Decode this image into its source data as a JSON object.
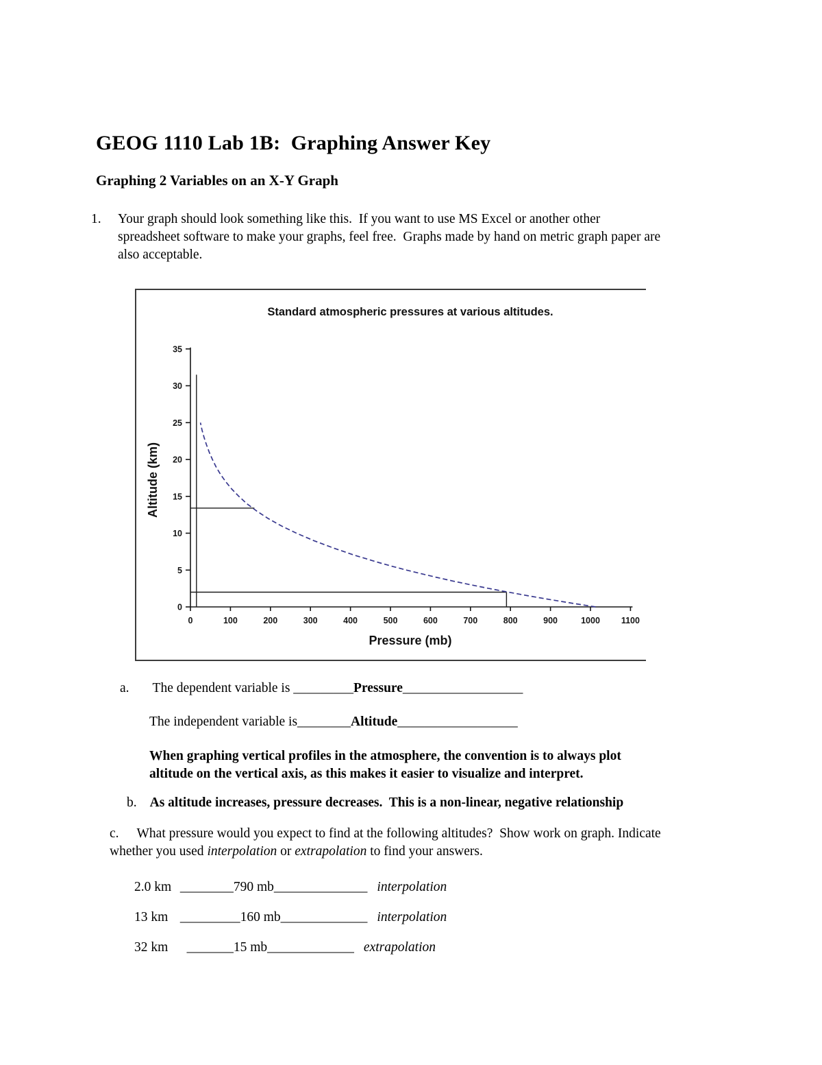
{
  "page": {
    "title": "GEOG 1110 Lab 1B:  Graphing Answer Key",
    "subtitle": "Graphing 2 Variables on an X-Y Graph",
    "item1": {
      "number": "1.",
      "lines": [
        "Your graph should look something like this.  If you want to use MS Excel or another other",
        "spreadsheet software to make your graphs, feel free.  Graphs made by hand on metric graph paper are",
        "also acceptable."
      ]
    }
  },
  "qa": {
    "a": {
      "label": "a.",
      "dependent_prefix": "The dependent variable is ",
      "dependent_blank1": "_________",
      "dependent_answer": "Pressure",
      "dependent_blank2": "__________________",
      "independent_prefix": "The independent variable is",
      "independent_blank1": "________",
      "independent_answer": "Altitude",
      "independent_blank2": "__________________",
      "note_lines": [
        "When graphing vertical profiles in the atmosphere, the convention is to always plot",
        "altitude on the vertical axis, as this makes it easier to visualize and interpret."
      ]
    },
    "b": {
      "label": "b.",
      "text": "As altitude increases, pressure decreases.  This is a non-linear, negative relationship"
    },
    "c": {
      "label": "c.",
      "line1": "What pressure would you expect to find at the following altitudes?  Show work on graph. Indicate",
      "line2_pre": "whether you used ",
      "line2_italic1": "interpolation",
      "line2_mid": " or ",
      "line2_italic2": "extrapolation",
      "line2_post": " to find your answers."
    },
    "answers": [
      {
        "altitude": "2.0 km",
        "blank1": " ________",
        "value": "790 mb",
        "blank2": "______________",
        "method": "interpolation"
      },
      {
        "altitude": "13 km",
        "blank1": " _________",
        "value": "160 mb",
        "blank2": "_____________",
        "method": "interpolation"
      },
      {
        "altitude": "32 km",
        "blank1": "   _______",
        "value": "15 mb",
        "blank2": "_____________",
        "method": "extrapolation"
      }
    ]
  },
  "chart_data": {
    "type": "line",
    "title": "Standard atmospheric pressures at various altitudes.",
    "xlabel": "Pressure (mb)",
    "ylabel": "Altitude (km)",
    "xlim": [
      0,
      1100
    ],
    "ylim": [
      0,
      35
    ],
    "xticks": [
      0,
      100,
      200,
      300,
      400,
      500,
      600,
      700,
      800,
      900,
      1000,
      1100
    ],
    "yticks": [
      0,
      5,
      10,
      15,
      20,
      25,
      30,
      35
    ],
    "grid": false,
    "legend": "none",
    "series": [
      {
        "name": "standard-atmosphere-pressure-profile",
        "color": "#39398f",
        "line_style": "dashed",
        "points": [
          [
            1013,
            0
          ],
          [
            954,
            0.5
          ],
          [
            899,
            1
          ],
          [
            845,
            1.5
          ],
          [
            795,
            2
          ],
          [
            746,
            2.5
          ],
          [
            701,
            3
          ],
          [
            657,
            3.5
          ],
          [
            616,
            4
          ],
          [
            577,
            4.5
          ],
          [
            540,
            5
          ],
          [
            505,
            5.5
          ],
          [
            472,
            6
          ],
          [
            411,
            7
          ],
          [
            357,
            8
          ],
          [
            308,
            9
          ],
          [
            265,
            10
          ],
          [
            227,
            11
          ],
          [
            194,
            12
          ],
          [
            166,
            13
          ],
          [
            141,
            14
          ],
          [
            121,
            15
          ],
          [
            103,
            16
          ],
          [
            88,
            17
          ],
          [
            75,
            18
          ],
          [
            64,
            19
          ],
          [
            55,
            20
          ],
          [
            47,
            21
          ],
          [
            40,
            22
          ],
          [
            34,
            23
          ],
          [
            29,
            24
          ],
          [
            25,
            25
          ]
        ]
      }
    ],
    "work_lines": [
      {
        "name": "interpolation-13km-horizontal",
        "from": [
          0,
          13.4
        ],
        "to": [
          160,
          13.4
        ]
      },
      {
        "name": "interpolation-2km-horizontal",
        "from": [
          0,
          2
        ],
        "to": [
          790,
          2
        ]
      },
      {
        "name": "interpolation-2km-vertical",
        "from": [
          790,
          2
        ],
        "to": [
          790,
          0
        ]
      },
      {
        "name": "extrapolation-32km-vertical",
        "from": [
          15,
          0
        ],
        "to": [
          15,
          31.5
        ]
      }
    ]
  }
}
